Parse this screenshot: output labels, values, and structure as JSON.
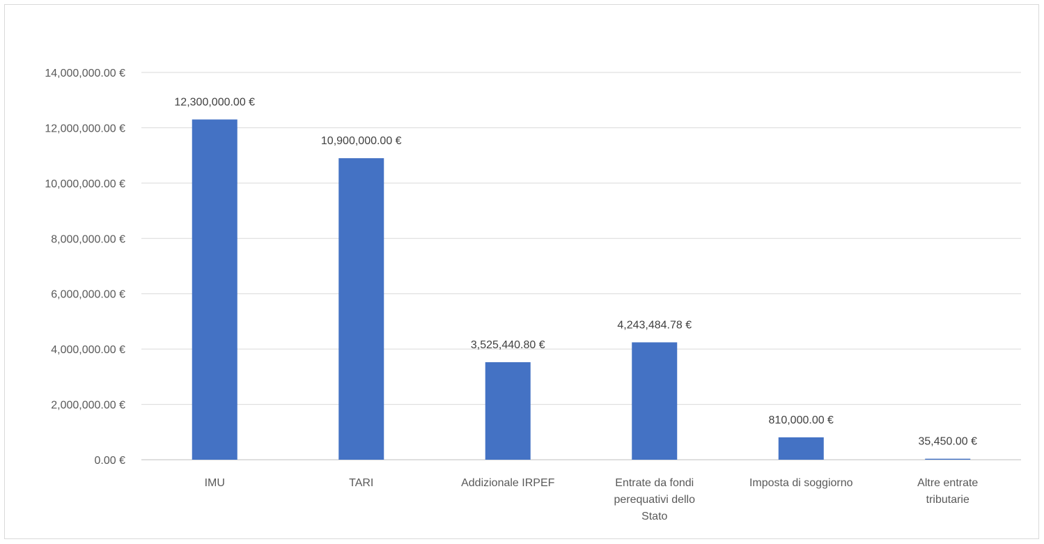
{
  "chart_data": {
    "type": "bar",
    "title": "",
    "xlabel": "",
    "ylabel": "",
    "ylim": [
      0,
      14000000
    ],
    "y_step": 2000000,
    "y_tick_labels": [
      "0.00 €",
      "2,000,000.00 €",
      "4,000,000.00 €",
      "6,000,000.00 €",
      "8,000,000.00 €",
      "10,000,000.00 €",
      "12,000,000.00 €",
      "14,000,000.00 €"
    ],
    "grid": true,
    "legend": "none",
    "bar_color": "#4472C4",
    "categories": [
      [
        "IMU"
      ],
      [
        "TARI"
      ],
      [
        "Addizionale IRPEF"
      ],
      [
        "Entrate da fondi",
        "perequativi dello",
        "Stato"
      ],
      [
        "Imposta di soggiorno"
      ],
      [
        "Altre entrate",
        "tributarie"
      ]
    ],
    "values": [
      12300000,
      10900000,
      3525440.8,
      4243484.78,
      810000,
      35450
    ],
    "data_labels": [
      "12,300,000.00 €",
      "10,900,000.00 €",
      "3,525,440.80 €",
      "4,243,484.78 €",
      "810,000.00 €",
      "35,450.00 €"
    ]
  }
}
